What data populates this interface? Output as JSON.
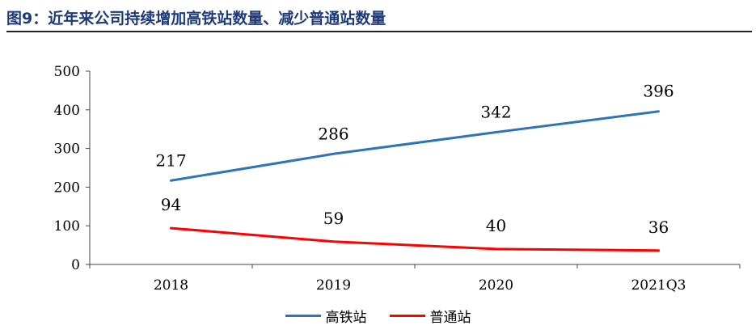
{
  "figure": {
    "title": "图9：近年来公司持续增加高铁站数量、减少普通站数量"
  },
  "chart_data": {
    "type": "line",
    "categories": [
      "2018",
      "2019",
      "2020",
      "2021Q3"
    ],
    "ylim": [
      0,
      500
    ],
    "yticks": [
      0,
      100,
      200,
      300,
      400,
      500
    ],
    "series": [
      {
        "name": "高铁站",
        "color": "#2e75b6",
        "values": [
          217,
          286,
          342,
          396
        ]
      },
      {
        "name": "普通站",
        "color": "#ff0000",
        "values": [
          94,
          59,
          40,
          36
        ]
      }
    ],
    "grid": false,
    "legend": "bottom-center"
  }
}
